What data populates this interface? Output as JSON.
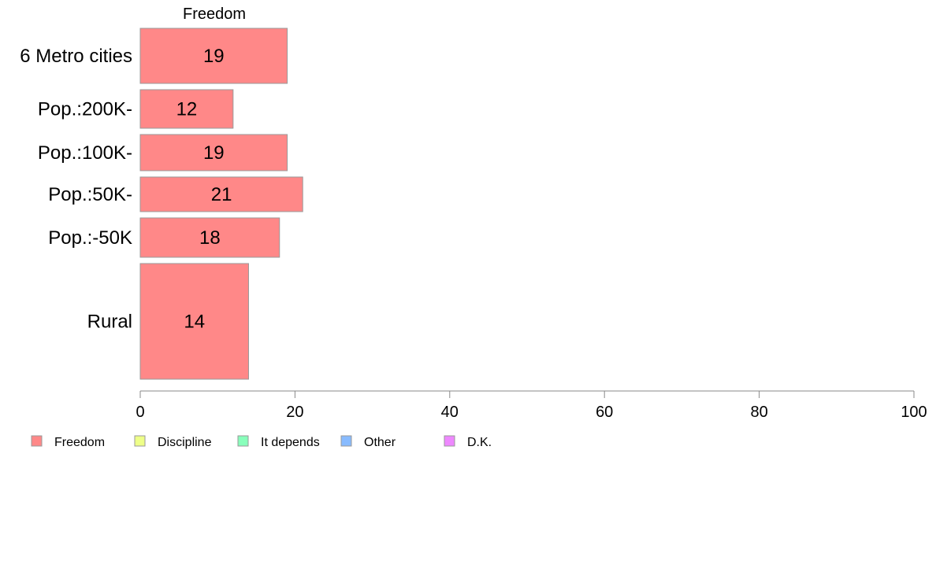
{
  "chart_data": {
    "type": "bar",
    "orientation": "horizontal",
    "panel_title": "Freedom",
    "categories": [
      "6 Metro cities",
      "Pop.:200K-",
      "Pop.:100K-",
      "Pop.:50K-",
      "Pop.:-50K",
      "Rural"
    ],
    "values": [
      19,
      12,
      19,
      21,
      18,
      14
    ],
    "value_labels": [
      "19",
      "12",
      "19",
      "21",
      "18",
      "14"
    ],
    "xlim": [
      0,
      100
    ],
    "x_ticks": [
      0,
      20,
      40,
      60,
      80,
      100
    ],
    "x_tick_labels": [
      "0",
      "20",
      "40",
      "60",
      "80",
      "100"
    ],
    "grid": false,
    "bar_color": "#ff8888",
    "legend": {
      "placement": "bottom",
      "entries": [
        {
          "label": "Freedom",
          "color": "#ff8888"
        },
        {
          "label": "Discipline",
          "color": "#eeff88"
        },
        {
          "label": "It depends",
          "color": "#88ffbb"
        },
        {
          "label": "Other",
          "color": "#88bbff"
        },
        {
          "label": "D.K.",
          "color": "#ee88ff"
        }
      ]
    }
  }
}
